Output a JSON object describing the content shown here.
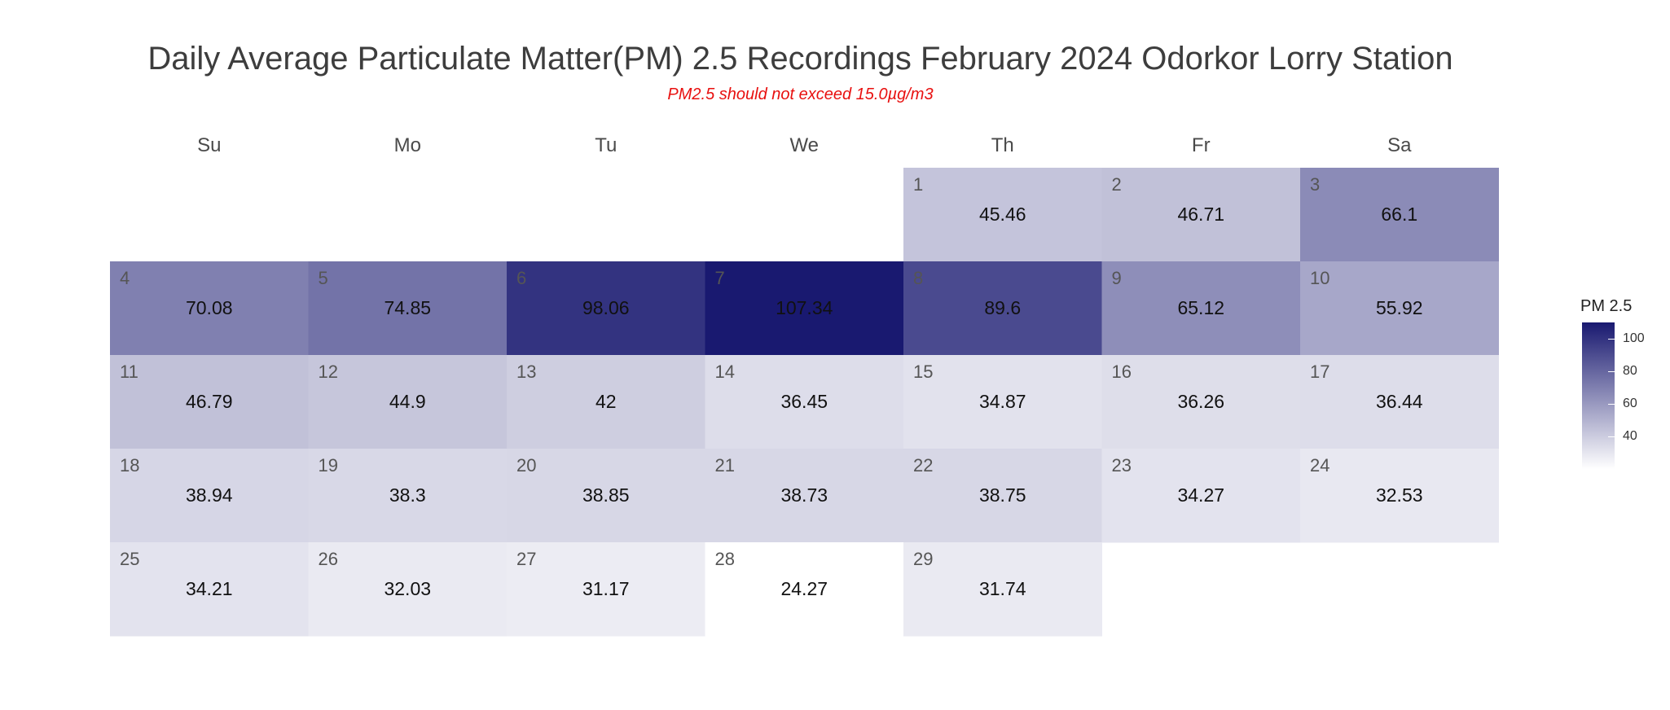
{
  "chart_data": {
    "type": "heatmap",
    "title": "Daily Average Particulate Matter(PM) 2.5 Recordings February 2024 Odorkor Lorry Station",
    "subtitle": "PM2.5 should not exceed 15.0µg/m3",
    "weekdays": [
      "Su",
      "Mo",
      "Tu",
      "We",
      "Th",
      "Fr",
      "Sa"
    ],
    "first_weekday_index": 4,
    "days": [
      1,
      2,
      3,
      4,
      5,
      6,
      7,
      8,
      9,
      10,
      11,
      12,
      13,
      14,
      15,
      16,
      17,
      18,
      19,
      20,
      21,
      22,
      23,
      24,
      25,
      26,
      27,
      28,
      29
    ],
    "values": [
      45.46,
      46.71,
      66.1,
      70.08,
      74.85,
      98.06,
      107.34,
      89.6,
      65.12,
      55.92,
      46.79,
      44.9,
      42,
      36.45,
      34.87,
      36.26,
      36.44,
      38.94,
      38.3,
      38.85,
      38.73,
      38.75,
      34.27,
      32.53,
      34.21,
      32.03,
      31.17,
      24.27,
      31.74
    ],
    "value_labels": [
      "45.46",
      "46.71",
      "66.1",
      "70.08",
      "74.85",
      "98.06",
      "107.34",
      "89.6",
      "65.12",
      "55.92",
      "46.79",
      "44.9",
      "42",
      "36.45",
      "34.87",
      "36.26",
      "36.44",
      "38.94",
      "38.3",
      "38.85",
      "38.73",
      "38.75",
      "34.27",
      "32.53",
      "34.21",
      "32.03",
      "31.17",
      "24.27",
      "31.74"
    ],
    "color_low": "#ffffff",
    "color_high": "#191970",
    "scale_min": 24.27,
    "scale_max": 107.34,
    "legend": {
      "title": "PM 2.5",
      "ticks": [
        100,
        80,
        60,
        40
      ],
      "placement": "right"
    }
  }
}
